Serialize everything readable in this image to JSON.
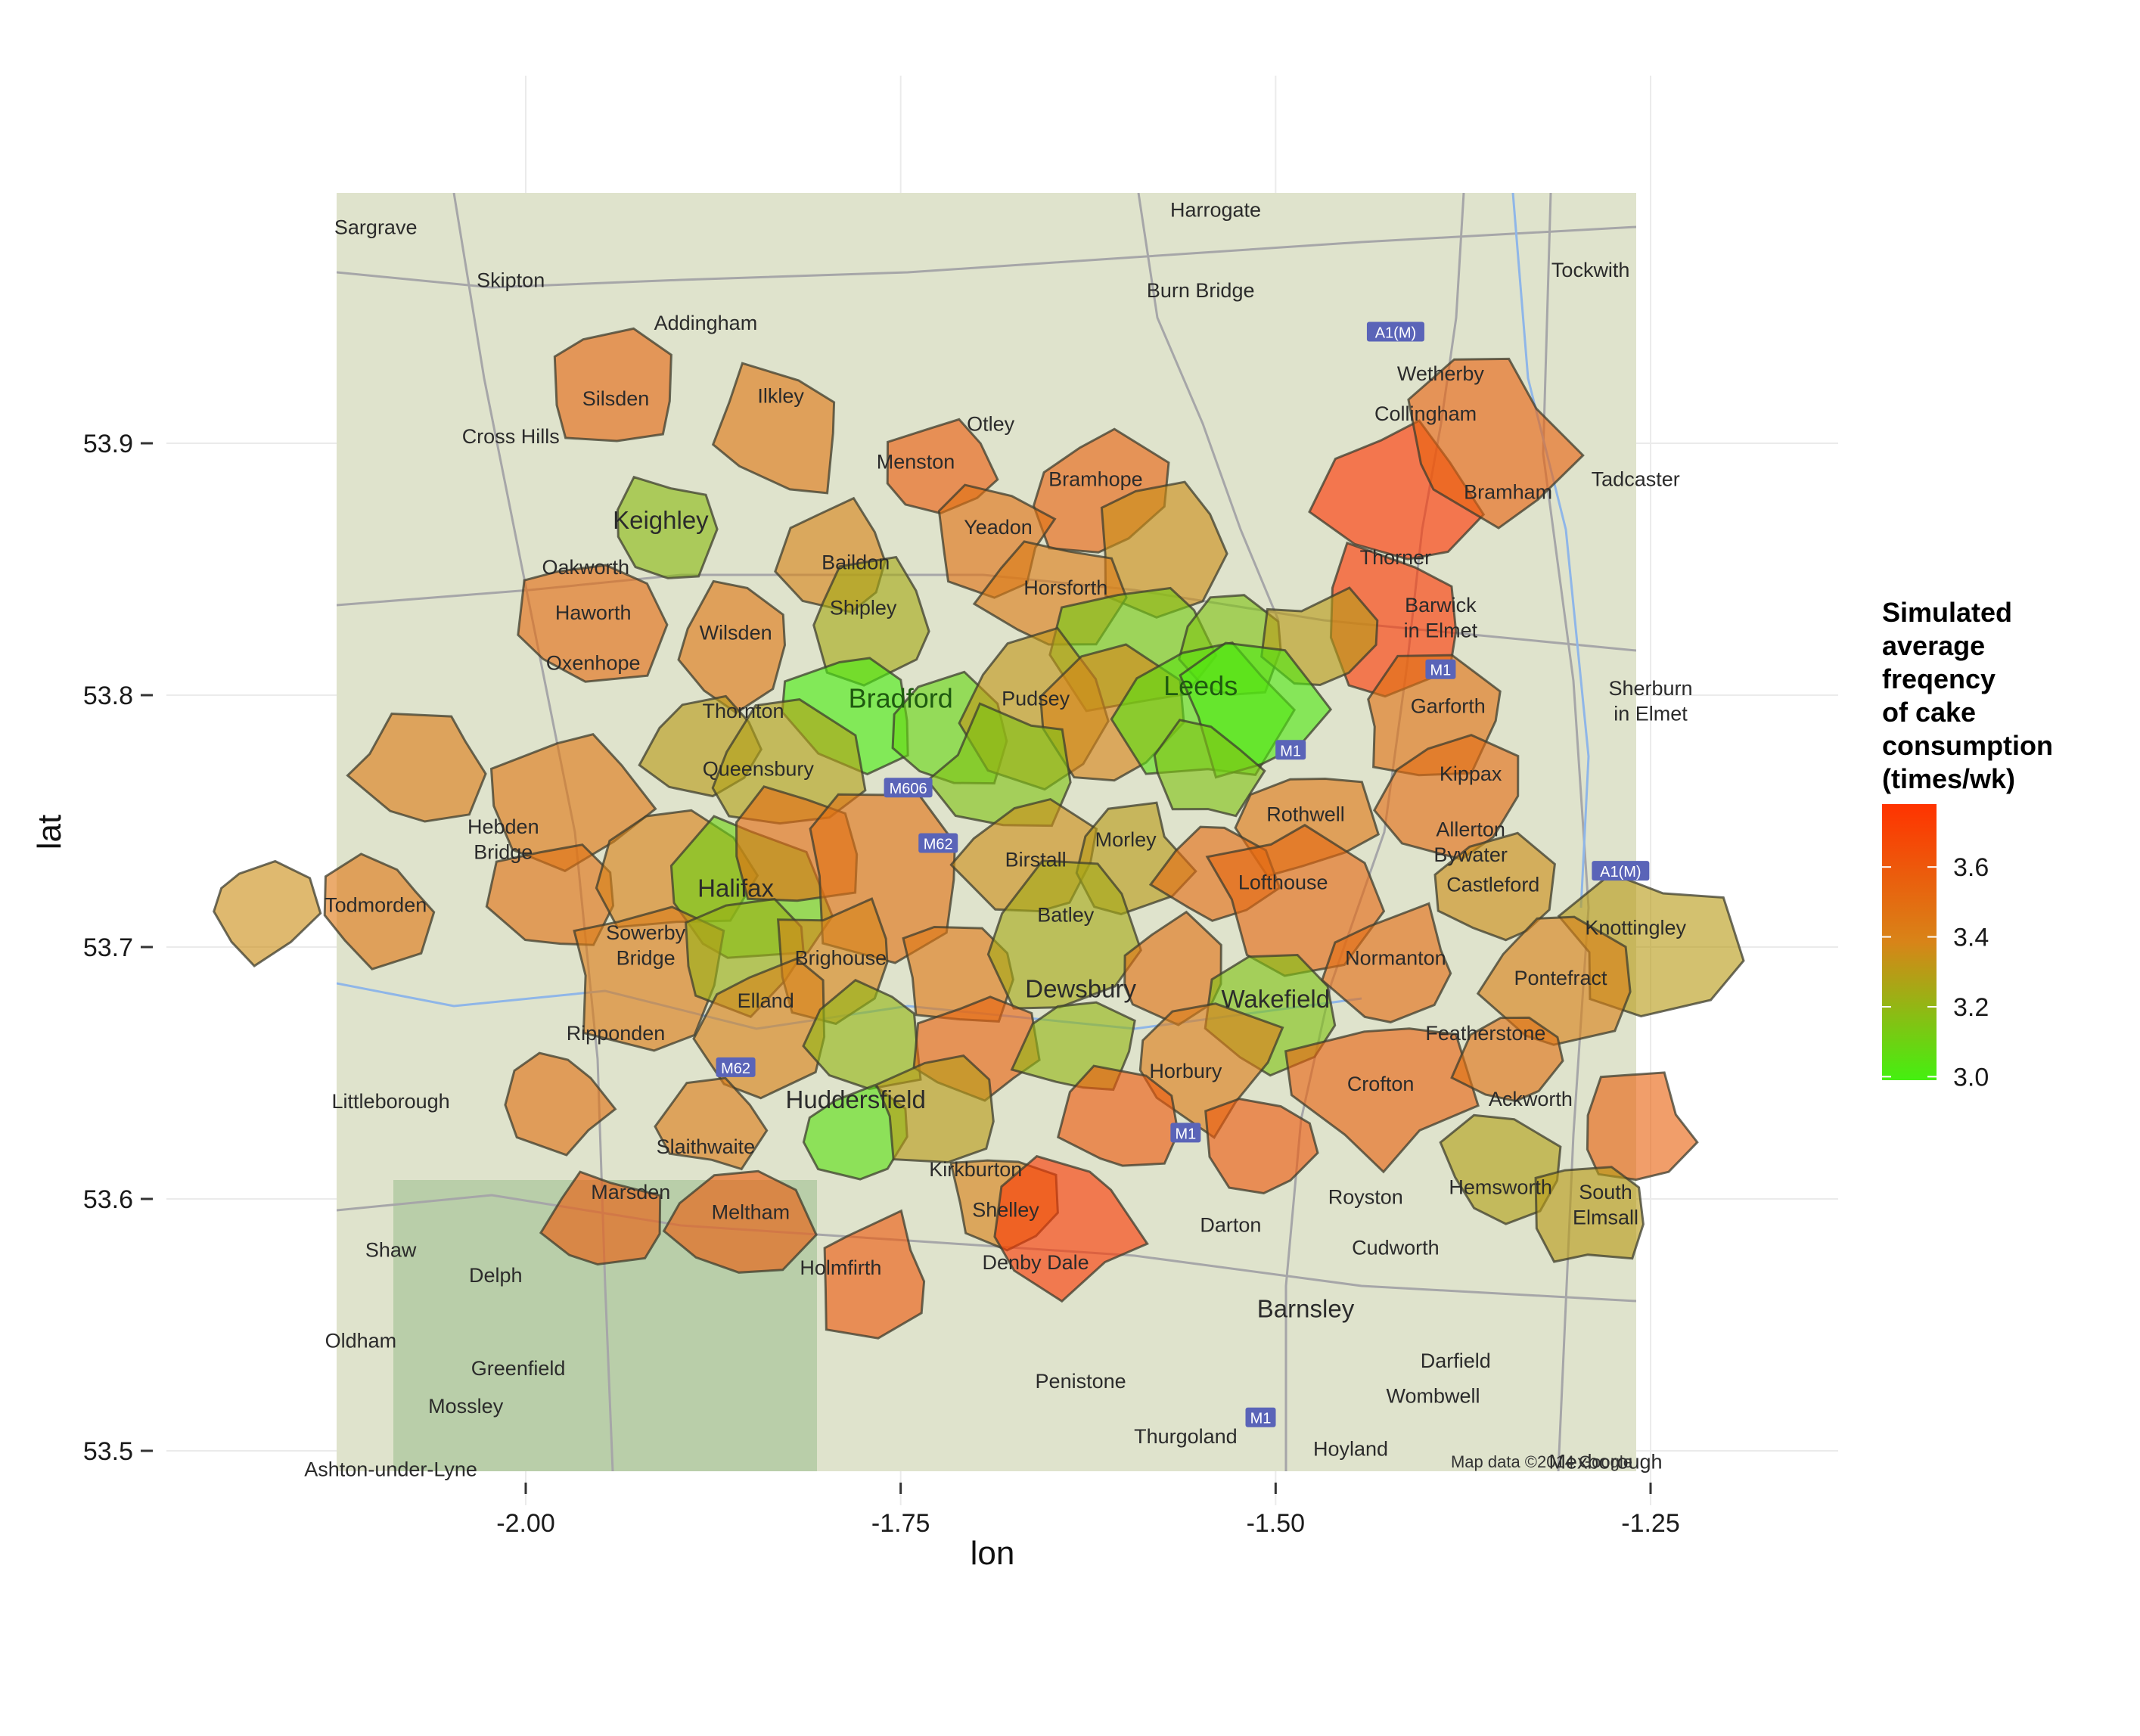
{
  "chart_data": {
    "type": "map",
    "x_axis": {
      "label": "lon",
      "ticks": [
        -2.0,
        -1.75,
        -1.5,
        -1.25
      ],
      "tick_labels": [
        "-2.00",
        "-1.75",
        "-1.50",
        "-1.25"
      ],
      "range": [
        -2.125,
        -1.25
      ]
    },
    "y_axis": {
      "label": "lat",
      "ticks": [
        53.5,
        53.6,
        53.7,
        53.8,
        53.9
      ],
      "tick_labels": [
        "53.5",
        "53.6",
        "53.7",
        "53.8",
        "53.9"
      ],
      "range": [
        53.485,
        53.985
      ]
    },
    "grid": true,
    "legend": {
      "title_lines": [
        "Simulated",
        "average",
        "freqency",
        "of cake",
        "consumption",
        "(times/wk)"
      ],
      "tick_values": [
        3.6,
        3.4,
        3.2,
        3.0
      ],
      "tick_labels": [
        "3.6",
        "3.4",
        "3.2",
        "3.0"
      ],
      "range": [
        2.99,
        3.78
      ],
      "colors": {
        "low": "#44f010",
        "mid": "#d88418",
        "high": "#ff3300"
      },
      "placement": "right"
    },
    "attribution": "Map data ©2014 Google",
    "places": [
      {
        "name": "Harrogate",
        "lon": -1.54,
        "lat": 53.99
      },
      {
        "name": "Sargrave",
        "lon": -2.1,
        "lat": 53.983
      },
      {
        "name": "Skipton",
        "lon": -2.01,
        "lat": 53.962
      },
      {
        "name": "Burn Bridge",
        "lon": -1.55,
        "lat": 53.958
      },
      {
        "name": "Tockwith",
        "lon": -1.29,
        "lat": 53.966
      },
      {
        "name": "Addingham",
        "lon": -1.88,
        "lat": 53.945
      },
      {
        "name": "Silsden",
        "lon": -1.94,
        "lat": 53.915
      },
      {
        "name": "Ilkley",
        "lon": -1.83,
        "lat": 53.916
      },
      {
        "name": "Wetherby",
        "lon": -1.39,
        "lat": 53.925
      },
      {
        "name": "Cross Hills",
        "lon": -2.01,
        "lat": 53.9
      },
      {
        "name": "Otley",
        "lon": -1.69,
        "lat": 53.905
      },
      {
        "name": "Collingham",
        "lon": -1.4,
        "lat": 53.909
      },
      {
        "name": "Menston",
        "lon": -1.74,
        "lat": 53.89
      },
      {
        "name": "Bramhope",
        "lon": -1.62,
        "lat": 53.883
      },
      {
        "name": "Bramham",
        "lon": -1.345,
        "lat": 53.878
      },
      {
        "name": "Tadcaster",
        "lon": -1.26,
        "lat": 53.883
      },
      {
        "name": "Keighley",
        "lon": -1.91,
        "lat": 53.866
      },
      {
        "name": "Yeadon",
        "lon": -1.685,
        "lat": 53.864
      },
      {
        "name": "Oakworth",
        "lon": -1.96,
        "lat": 53.848
      },
      {
        "name": "Baildon",
        "lon": -1.78,
        "lat": 53.85
      },
      {
        "name": "Thorner",
        "lon": -1.42,
        "lat": 53.852
      },
      {
        "name": "Horsforth",
        "lon": -1.64,
        "lat": 53.84
      },
      {
        "name": "Shipley",
        "lon": -1.775,
        "lat": 53.832
      },
      {
        "name": "Barwick",
        "lon": -1.39,
        "lat": 53.833
      },
      {
        "name": "in Elmet",
        "lon": -1.39,
        "lat": 53.823
      },
      {
        "name": "Haworth",
        "lon": -1.955,
        "lat": 53.83
      },
      {
        "name": "Wilsden",
        "lon": -1.86,
        "lat": 53.822
      },
      {
        "name": "Oxenhope",
        "lon": -1.955,
        "lat": 53.81
      },
      {
        "name": "Bradford",
        "lon": -1.75,
        "lat": 53.795
      },
      {
        "name": "Leeds",
        "lon": -1.55,
        "lat": 53.8
      },
      {
        "name": "Pudsey",
        "lon": -1.66,
        "lat": 53.796
      },
      {
        "name": "Thornton",
        "lon": -1.855,
        "lat": 53.791
      },
      {
        "name": "Garforth",
        "lon": -1.385,
        "lat": 53.793
      },
      {
        "name": "Sherburn",
        "lon": -1.25,
        "lat": 53.8
      },
      {
        "name": "in Elmet",
        "lon": -1.25,
        "lat": 53.79
      },
      {
        "name": "Queensbury",
        "lon": -1.845,
        "lat": 53.768
      },
      {
        "name": "Kippax",
        "lon": -1.37,
        "lat": 53.766
      },
      {
        "name": "Rothwell",
        "lon": -1.48,
        "lat": 53.75
      },
      {
        "name": "Hebden",
        "lon": -2.015,
        "lat": 53.745
      },
      {
        "name": "Bridge",
        "lon": -2.015,
        "lat": 53.735
      },
      {
        "name": "Morley",
        "lon": -1.6,
        "lat": 53.74
      },
      {
        "name": "Allerton",
        "lon": -1.37,
        "lat": 53.744
      },
      {
        "name": "Bywater",
        "lon": -1.37,
        "lat": 53.734
      },
      {
        "name": "Halifax",
        "lon": -1.86,
        "lat": 53.72
      },
      {
        "name": "Birstall",
        "lon": -1.66,
        "lat": 53.732
      },
      {
        "name": "Lofthouse",
        "lon": -1.495,
        "lat": 53.723
      },
      {
        "name": "Castleford",
        "lon": -1.355,
        "lat": 53.722
      },
      {
        "name": "Todmorden",
        "lon": -2.1,
        "lat": 53.714
      },
      {
        "name": "Batley",
        "lon": -1.64,
        "lat": 53.71
      },
      {
        "name": "Sowerby",
        "lon": -1.92,
        "lat": 53.703
      },
      {
        "name": "Bridge",
        "lon": -1.92,
        "lat": 53.693
      },
      {
        "name": "Brighouse",
        "lon": -1.79,
        "lat": 53.693
      },
      {
        "name": "Normanton",
        "lon": -1.42,
        "lat": 53.693
      },
      {
        "name": "Knottingley",
        "lon": -1.26,
        "lat": 53.705
      },
      {
        "name": "Pontefract",
        "lon": -1.31,
        "lat": 53.685
      },
      {
        "name": "Dewsbury",
        "lon": -1.63,
        "lat": 53.68
      },
      {
        "name": "Wakefield",
        "lon": -1.5,
        "lat": 53.676
      },
      {
        "name": "Elland",
        "lon": -1.84,
        "lat": 53.676
      },
      {
        "name": "Ripponden",
        "lon": -1.94,
        "lat": 53.663
      },
      {
        "name": "Featherstone",
        "lon": -1.36,
        "lat": 53.663
      },
      {
        "name": "Horbury",
        "lon": -1.56,
        "lat": 53.648
      },
      {
        "name": "Crofton",
        "lon": -1.43,
        "lat": 53.643
      },
      {
        "name": "Littleborough",
        "lon": -2.09,
        "lat": 53.636
      },
      {
        "name": "Huddersfield",
        "lon": -1.78,
        "lat": 53.636
      },
      {
        "name": "Ackworth",
        "lon": -1.33,
        "lat": 53.637
      },
      {
        "name": "Slaithwaite",
        "lon": -1.88,
        "lat": 53.618
      },
      {
        "name": "Hemsworth",
        "lon": -1.35,
        "lat": 53.602
      },
      {
        "name": "Kirkburton",
        "lon": -1.7,
        "lat": 53.609
      },
      {
        "name": "Marsden",
        "lon": -1.93,
        "lat": 53.6
      },
      {
        "name": "South",
        "lon": -1.28,
        "lat": 53.6
      },
      {
        "name": "Royston",
        "lon": -1.44,
        "lat": 53.598
      },
      {
        "name": "Elmsall",
        "lon": -1.28,
        "lat": 53.59
      },
      {
        "name": "Shelley",
        "lon": -1.68,
        "lat": 53.593
      },
      {
        "name": "Meltham",
        "lon": -1.85,
        "lat": 53.592
      },
      {
        "name": "Darton",
        "lon": -1.53,
        "lat": 53.587
      },
      {
        "name": "Shaw",
        "lon": -2.09,
        "lat": 53.577
      },
      {
        "name": "Denby Dale",
        "lon": -1.66,
        "lat": 53.572
      },
      {
        "name": "Holmfirth",
        "lon": -1.79,
        "lat": 53.57
      },
      {
        "name": "Cudworth",
        "lon": -1.42,
        "lat": 53.578
      },
      {
        "name": "Delph",
        "lon": -2.02,
        "lat": 53.567
      },
      {
        "name": "Barnsley",
        "lon": -1.48,
        "lat": 53.553
      },
      {
        "name": "Oldham",
        "lon": -2.11,
        "lat": 53.541
      },
      {
        "name": "Greenfield",
        "lon": -2.005,
        "lat": 53.53
      },
      {
        "name": "Darfield",
        "lon": -1.38,
        "lat": 53.533
      },
      {
        "name": "Penistone",
        "lon": -1.63,
        "lat": 53.525
      },
      {
        "name": "Mossley",
        "lon": -2.04,
        "lat": 53.515
      },
      {
        "name": "Wombwell",
        "lon": -1.395,
        "lat": 53.519
      },
      {
        "name": "Thurgoland",
        "lon": -1.56,
        "lat": 53.503
      },
      {
        "name": "Hoyland",
        "lon": -1.45,
        "lat": 53.498
      },
      {
        "name": "Mexborough",
        "lon": -1.28,
        "lat": 53.493
      },
      {
        "name": "Ashton-under-Lyne",
        "lon": -2.09,
        "lat": 53.49
      }
    ],
    "motorway_shields": [
      {
        "label": "A1(M)",
        "lon": -1.42,
        "lat": 53.944
      },
      {
        "label": "A1(M)",
        "lon": -1.27,
        "lat": 53.73
      },
      {
        "label": "M1",
        "lon": -1.39,
        "lat": 53.81
      },
      {
        "label": "M1",
        "lon": -1.49,
        "lat": 53.778
      },
      {
        "label": "M606",
        "lon": -1.745,
        "lat": 53.763
      },
      {
        "label": "M62",
        "lon": -1.725,
        "lat": 53.741
      },
      {
        "label": "M62",
        "lon": -1.86,
        "lat": 53.652
      },
      {
        "label": "M1",
        "lon": -1.56,
        "lat": 53.626
      },
      {
        "label": "M1",
        "lon": -1.51,
        "lat": 53.513
      }
    ],
    "regions": [
      {
        "lon": -1.94,
        "lat": 53.92,
        "value": 3.52
      },
      {
        "lon": -1.83,
        "lat": 53.905,
        "value": 3.45
      },
      {
        "lon": -1.72,
        "lat": 53.89,
        "value": 3.58
      },
      {
        "lon": -1.62,
        "lat": 53.88,
        "value": 3.55
      },
      {
        "lon": -1.42,
        "lat": 53.88,
        "value": 3.78
      },
      {
        "lon": -1.36,
        "lat": 53.9,
        "value": 3.55
      },
      {
        "lon": -1.91,
        "lat": 53.866,
        "value": 3.18
      },
      {
        "lon": -1.79,
        "lat": 53.855,
        "value": 3.38
      },
      {
        "lon": -1.69,
        "lat": 53.86,
        "value": 3.48
      },
      {
        "lon": -1.58,
        "lat": 53.86,
        "value": 3.35
      },
      {
        "lon": -1.42,
        "lat": 53.83,
        "value": 3.76
      },
      {
        "lon": -1.96,
        "lat": 53.83,
        "value": 3.5
      },
      {
        "lon": -1.86,
        "lat": 53.82,
        "value": 3.45
      },
      {
        "lon": -1.77,
        "lat": 53.83,
        "value": 3.25
      },
      {
        "lon": -1.65,
        "lat": 53.84,
        "value": 3.42
      },
      {
        "lon": -1.59,
        "lat": 53.82,
        "value": 3.12
      },
      {
        "lon": -1.53,
        "lat": 53.82,
        "value": 3.15
      },
      {
        "lon": -1.47,
        "lat": 53.82,
        "value": 3.3
      },
      {
        "lon": -1.78,
        "lat": 53.795,
        "value": 3.0
      },
      {
        "lon": -1.72,
        "lat": 53.785,
        "value": 3.08
      },
      {
        "lon": -1.66,
        "lat": 53.795,
        "value": 3.32
      },
      {
        "lon": -1.61,
        "lat": 53.79,
        "value": 3.38
      },
      {
        "lon": -1.55,
        "lat": 53.795,
        "value": 3.05
      },
      {
        "lon": -1.51,
        "lat": 53.795,
        "value": 3.02
      },
      {
        "lon": -1.55,
        "lat": 53.77,
        "value": 3.15
      },
      {
        "lon": -1.4,
        "lat": 53.79,
        "value": 3.48
      },
      {
        "lon": -2.07,
        "lat": 53.77,
        "value": 3.42
      },
      {
        "lon": -1.97,
        "lat": 53.76,
        "value": 3.45
      },
      {
        "lon": -1.88,
        "lat": 53.78,
        "value": 3.3
      },
      {
        "lon": -1.83,
        "lat": 53.77,
        "value": 3.28
      },
      {
        "lon": -1.68,
        "lat": 53.77,
        "value": 3.15
      },
      {
        "lon": -1.48,
        "lat": 53.75,
        "value": 3.45
      },
      {
        "lon": -1.38,
        "lat": 53.76,
        "value": 3.5
      },
      {
        "lon": -2.18,
        "lat": 53.715,
        "value": 3.35
      },
      {
        "lon": -2.1,
        "lat": 53.715,
        "value": 3.45
      },
      {
        "lon": -1.98,
        "lat": 53.72,
        "value": 3.48
      },
      {
        "lon": -1.9,
        "lat": 53.73,
        "value": 3.4
      },
      {
        "lon": -1.86,
        "lat": 53.72,
        "value": 3.1
      },
      {
        "lon": -1.82,
        "lat": 53.74,
        "value": 3.5
      },
      {
        "lon": -1.76,
        "lat": 53.73,
        "value": 3.48
      },
      {
        "lon": -1.66,
        "lat": 53.735,
        "value": 3.35
      },
      {
        "lon": -1.6,
        "lat": 53.735,
        "value": 3.3
      },
      {
        "lon": -1.54,
        "lat": 53.73,
        "value": 3.5
      },
      {
        "lon": -1.49,
        "lat": 53.72,
        "value": 3.52
      },
      {
        "lon": -1.35,
        "lat": 53.72,
        "value": 3.35
      },
      {
        "lon": -1.25,
        "lat": 53.7,
        "value": 3.3
      },
      {
        "lon": -1.92,
        "lat": 53.69,
        "value": 3.42
      },
      {
        "lon": -1.85,
        "lat": 53.7,
        "value": 3.22
      },
      {
        "lon": -1.79,
        "lat": 53.695,
        "value": 3.38
      },
      {
        "lon": -1.71,
        "lat": 53.69,
        "value": 3.45
      },
      {
        "lon": -1.64,
        "lat": 53.705,
        "value": 3.25
      },
      {
        "lon": -1.57,
        "lat": 53.69,
        "value": 3.48
      },
      {
        "lon": -1.5,
        "lat": 53.675,
        "value": 3.15
      },
      {
        "lon": -1.42,
        "lat": 53.69,
        "value": 3.5
      },
      {
        "lon": -1.31,
        "lat": 53.685,
        "value": 3.4
      },
      {
        "lon": -1.84,
        "lat": 53.67,
        "value": 3.4
      },
      {
        "lon": -1.77,
        "lat": 53.665,
        "value": 3.2
      },
      {
        "lon": -1.7,
        "lat": 53.66,
        "value": 3.55
      },
      {
        "lon": -1.63,
        "lat": 53.66,
        "value": 3.2
      },
      {
        "lon": -1.55,
        "lat": 53.655,
        "value": 3.42
      },
      {
        "lon": -1.43,
        "lat": 53.645,
        "value": 3.55
      },
      {
        "lon": -1.34,
        "lat": 53.655,
        "value": 3.48
      },
      {
        "lon": -1.98,
        "lat": 53.64,
        "value": 3.48
      },
      {
        "lon": -1.88,
        "lat": 53.63,
        "value": 3.42
      },
      {
        "lon": -1.78,
        "lat": 53.625,
        "value": 3.05
      },
      {
        "lon": -1.72,
        "lat": 53.635,
        "value": 3.3
      },
      {
        "lon": -1.6,
        "lat": 53.63,
        "value": 3.6
      },
      {
        "lon": -1.51,
        "lat": 53.62,
        "value": 3.6
      },
      {
        "lon": -1.35,
        "lat": 53.61,
        "value": 3.28
      },
      {
        "lon": -1.26,
        "lat": 53.625,
        "value": 3.55
      },
      {
        "lon": -1.95,
        "lat": 53.59,
        "value": 3.58
      },
      {
        "lon": -1.86,
        "lat": 53.59,
        "value": 3.58
      },
      {
        "lon": -1.77,
        "lat": 53.57,
        "value": 3.6
      },
      {
        "lon": -1.68,
        "lat": 53.6,
        "value": 3.4
      },
      {
        "lon": -1.64,
        "lat": 53.59,
        "value": 3.75
      },
      {
        "lon": -1.29,
        "lat": 53.595,
        "value": 3.3
      }
    ]
  }
}
